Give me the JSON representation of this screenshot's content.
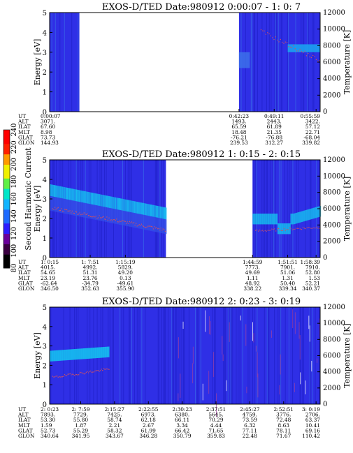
{
  "colorbar": {
    "label": "Second Harmonic Current",
    "ticks": [
      80,
      100,
      120,
      140,
      160,
      180,
      200,
      220,
      240
    ],
    "range": [
      80,
      240
    ]
  },
  "chart_data": [
    {
      "type": "heatmap",
      "title": "EXOS-D/TED  Date:980912  0:00:07 - 1: 0: 7",
      "ylabel": "Energy [eV]",
      "y2label": "Temperature [K]",
      "ylim": [
        0,
        5
      ],
      "y2lim": [
        0,
        12000
      ],
      "yticks": [
        0,
        1,
        2,
        3,
        4,
        5
      ],
      "y2ticks": [
        0,
        2000,
        4000,
        6000,
        8000,
        10000,
        12000
      ],
      "data_segments": [
        [
          0.0,
          0.11
        ],
        [
          0.7,
          1.0
        ]
      ],
      "row_labels": [
        "UT",
        "ALT",
        "ILAT",
        "MLT",
        "GLAT",
        "GLON"
      ],
      "columns": [
        {
          "pos": 0.0,
          "values": [
            "0:00:07",
            "3071.",
            "67.60",
            "8.98",
            "73.73",
            "144.93"
          ]
        },
        {
          "pos": 0.7,
          "values": [
            "0:42:23",
            "1493.",
            "65.59",
            "18.48",
            "-76.21",
            "239.53"
          ]
        },
        {
          "pos": 0.83,
          "values": [
            "0:49:11",
            "2443.",
            "61.89",
            "21.35",
            "-76.88",
            "312.27"
          ]
        },
        {
          "pos": 0.985,
          "values": [
            "0:55:59",
            "3422.",
            "57.12",
            "22.71",
            "-68.04",
            "339.82"
          ]
        }
      ]
    },
    {
      "type": "heatmap",
      "title": "EXOS-D/TED  Date:980912  1: 0:15 - 2: 0:15",
      "ylabel": "Energy [eV]",
      "y2label": "Temperature [K]",
      "ylim": [
        0,
        5
      ],
      "y2lim": [
        0,
        12000
      ],
      "yticks": [
        0,
        1,
        2,
        3,
        4,
        5
      ],
      "y2ticks": [
        0,
        2000,
        4000,
        6000,
        8000,
        10000,
        12000
      ],
      "data_segments": [
        [
          0.0,
          0.43
        ],
        [
          0.75,
          1.0
        ]
      ],
      "row_labels": [
        "UT",
        "ALT",
        "ILAT",
        "MLT",
        "GLAT",
        "GLON"
      ],
      "columns": [
        {
          "pos": 0.0,
          "values": [
            "1: 0:15",
            "4015.",
            "54.65",
            "23.19",
            "-62.64",
            "346.50"
          ]
        },
        {
          "pos": 0.15,
          "values": [
            "1: 7:51",
            "4992.",
            "51.31",
            "23.76",
            "-34.79",
            "352.63"
          ]
        },
        {
          "pos": 0.28,
          "values": [
            "1:15:19",
            "5829.",
            "49.20",
            "0.13",
            "-49.61",
            "355.90"
          ]
        },
        {
          "pos": 0.75,
          "values": [
            "1:44:59",
            "7773.",
            "49.69",
            "1.11",
            "48.92",
            "338.22"
          ]
        },
        {
          "pos": 0.88,
          "values": [
            "1:51:51",
            "7901.",
            "51.06",
            "1.31",
            "50.40",
            "339.34"
          ]
        },
        {
          "pos": 0.985,
          "values": [
            "1:58:39",
            "7910.",
            "52.80",
            "1.53",
            "52.21",
            "340.37"
          ]
        }
      ]
    },
    {
      "type": "heatmap",
      "title": "EXOS-D/TED  Date:980912  2: 0:23 - 3: 0:19",
      "ylabel": "Energy [eV]",
      "y2label": "Temperature [K]",
      "ylim": [
        0,
        5
      ],
      "y2lim": [
        0,
        12000
      ],
      "yticks": [
        0,
        1,
        2,
        3,
        4,
        5
      ],
      "y2ticks": [
        0,
        2000,
        4000,
        6000,
        8000,
        10000,
        12000
      ],
      "data_segments": [
        [
          0.0,
          1.0
        ]
      ],
      "row_labels": [
        "UT",
        "ALT",
        "ILAT",
        "MLT",
        "GLAT",
        "GLON"
      ],
      "columns": [
        {
          "pos": 0.0,
          "values": [
            "2: 0:23",
            "7893.",
            "53.30",
            "1.59",
            "52.73",
            "340.64"
          ]
        },
        {
          "pos": 0.115,
          "values": [
            "2: 7:59",
            "7729.",
            "55.80",
            "1.87",
            "55.29",
            "341.95"
          ]
        },
        {
          "pos": 0.24,
          "values": [
            "2:15:27",
            "7425.",
            "58.74",
            "2.21",
            "58.32",
            "343.67"
          ]
        },
        {
          "pos": 0.365,
          "values": [
            "2:22:55",
            "6973.",
            "62.18",
            "2.67",
            "61.99",
            "346.28"
          ]
        },
        {
          "pos": 0.49,
          "values": [
            "2:30:23",
            "6380.",
            "66.11",
            "3.34",
            "66.42",
            "350.79"
          ]
        },
        {
          "pos": 0.615,
          "values": [
            "2:37:51",
            "5645.",
            "70.29",
            "4.44",
            "71.65",
            "359.83"
          ]
        },
        {
          "pos": 0.74,
          "values": [
            "2:45:27",
            "4759.",
            "73.59",
            "6.32",
            "77.11",
            "22.48"
          ]
        },
        {
          "pos": 0.865,
          "values": [
            "2:52:51",
            "3776.",
            "72.48",
            "8.63",
            "78.11",
            "71.67"
          ]
        },
        {
          "pos": 0.985,
          "values": [
            "3: 0:19",
            "2706.",
            "63.37",
            "10.41",
            "69.16",
            "110.42"
          ]
        }
      ]
    }
  ]
}
